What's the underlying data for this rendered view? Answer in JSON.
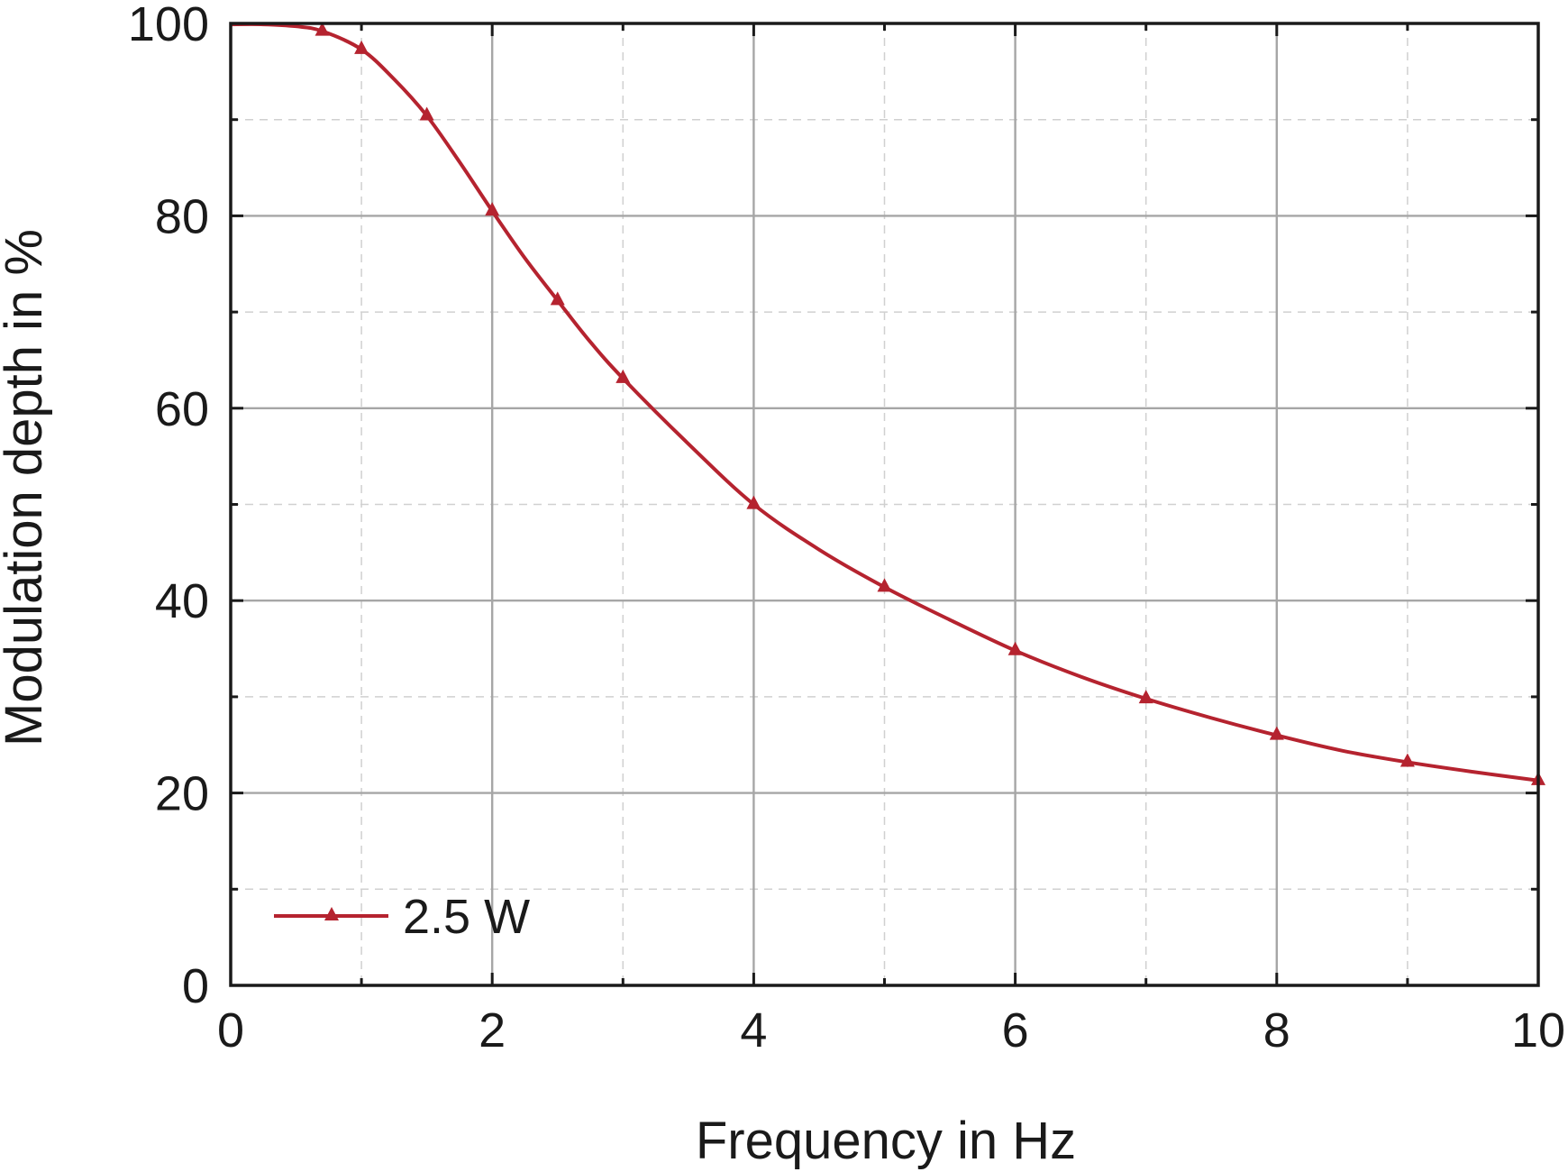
{
  "chart_data": {
    "type": "line",
    "xlabel": "Frequency in Hz",
    "ylabel": "Modulation depth in %",
    "xlim": [
      0,
      10
    ],
    "ylim": [
      0,
      100
    ],
    "x_ticks": [
      "0",
      "2",
      "4",
      "6",
      "8",
      "10"
    ],
    "y_ticks": [
      "0",
      "20",
      "40",
      "60",
      "80",
      "100"
    ],
    "grid": true,
    "minor_grid": true,
    "legend_position": "bottom-left",
    "series": [
      {
        "name": "2.5 W",
        "color": "#b5232f",
        "marker": "triangle",
        "curve": [
          [
            0.0,
            99.9
          ],
          [
            0.25,
            99.9
          ],
          [
            0.5,
            99.7
          ],
          [
            0.7,
            99.2
          ],
          [
            1.0,
            97.3
          ],
          [
            1.25,
            94.2
          ],
          [
            1.5,
            90.4
          ],
          [
            1.75,
            85.6
          ],
          [
            2.0,
            80.5
          ],
          [
            2.25,
            75.6
          ],
          [
            2.5,
            71.2
          ],
          [
            2.75,
            66.9
          ],
          [
            3.0,
            63.1
          ],
          [
            3.5,
            56.3
          ],
          [
            4.0,
            50.0
          ],
          [
            4.5,
            45.3
          ],
          [
            5.0,
            41.4
          ],
          [
            5.5,
            38.0
          ],
          [
            6.0,
            34.8
          ],
          [
            6.5,
            32.1
          ],
          [
            7.0,
            29.8
          ],
          [
            7.5,
            27.8
          ],
          [
            8.0,
            26.0
          ],
          [
            8.5,
            24.4
          ],
          [
            9.0,
            23.2
          ],
          [
            9.5,
            22.2
          ],
          [
            10.0,
            21.3
          ]
        ],
        "points": [
          [
            0.7,
            99.2
          ],
          [
            1.0,
            97.3
          ],
          [
            1.5,
            90.4
          ],
          [
            2.0,
            80.5
          ],
          [
            2.5,
            71.2
          ],
          [
            3.0,
            63.1
          ],
          [
            4.0,
            50.0
          ],
          [
            5.0,
            41.4
          ],
          [
            6.0,
            34.8
          ],
          [
            7.0,
            29.8
          ],
          [
            8.0,
            26.0
          ],
          [
            9.0,
            23.2
          ],
          [
            10.0,
            21.3
          ]
        ]
      }
    ]
  }
}
